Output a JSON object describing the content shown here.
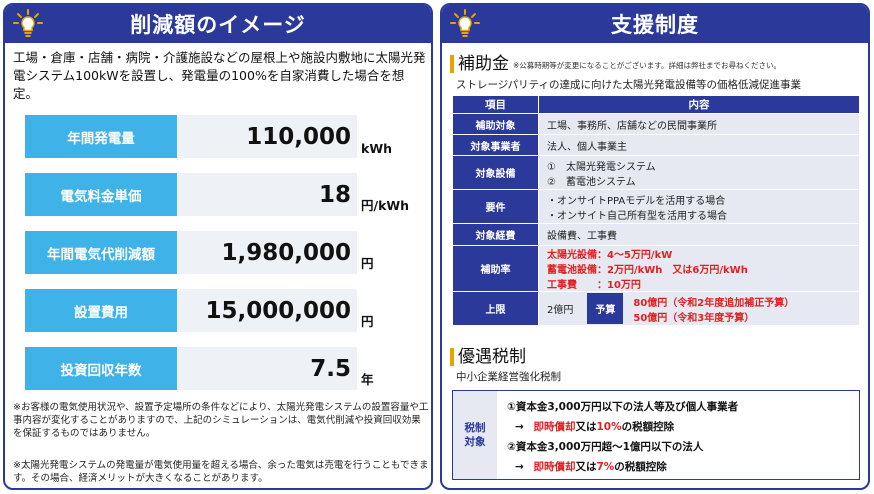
{
  "left": {
    "title": "削減額のイメージ",
    "intro": "工場・倉庫・店舗・病院・介護施設などの屋根上や施設内敷地に太陽光発電システム100kWを設置し、発電量の100%を自家消費した場合を想定。",
    "metrics": [
      {
        "label": "年間発電量",
        "value": "110,000",
        "unit": "kWh"
      },
      {
        "label": "電気料金単価",
        "value": "18",
        "unit": "円/kWh"
      },
      {
        "label": "年間電気代削減額",
        "value": "1,980,000",
        "unit": "円"
      },
      {
        "label": "設置費用",
        "value": "15,000,000",
        "unit": "円"
      },
      {
        "label": "投資回収年数",
        "value": "7.5",
        "unit": "年"
      }
    ],
    "note1": "※お客様の電気使用状況や、設置予定場所の条件などにより、太陽光発電システムの設置容量や工事内容が変化することがありますので、上記のシミュレーションは、電気代削減や投資回収効果を保証するものではありません。",
    "note2": "※太陽光発電システムの発電量が電気使用量を超える場合、余った電気は売電を行うこともできます。その場合、経済メリットが大きくなることがあります。"
  },
  "right": {
    "title": "支援制度",
    "subsidy": {
      "heading": "補助金",
      "note": "※公募時期等が変更になることがございます。詳細は弊社までお尋ねください。",
      "subtitle": "ストレージパリティの達成に向けた太陽光発電設備等の価格低減促進事業",
      "col_item": "項目",
      "col_content": "内容",
      "rows": {
        "target_label": "補助対象",
        "target": "工場、事務所、店舗などの民間事業所",
        "operator_label": "対象事業者",
        "operator": "法人、個人事業主",
        "equipment_label": "対象設備",
        "equipment1": "①　太陽光発電システム",
        "equipment2": "②　蓄電池システム",
        "req_label": "要件",
        "req1": "・オンサイトPPAモデルを活用する場合",
        "req2": "・オンサイト自己所有型を活用する場合",
        "cost_label": "対象経費",
        "cost": "設備費、工事費",
        "rate_label": "補助率",
        "rate1": "太陽光設備：4～5万円/kW",
        "rate2": "蓄電池設備：2万円/kWh　又は6万円/kWh",
        "rate3": "工事費　　：10万円",
        "limit_label": "上限",
        "limit": "2億円",
        "budget_label": "予算",
        "budget1": "80億円（令和2年度追加補正予算）",
        "budget2": "50億円（令和3年度予算）"
      }
    },
    "tax": {
      "heading": "優遇税制",
      "subtitle": "中小企業経営強化税制",
      "label": "税制\n対象",
      "line1": "①資本金3,000万円以下の法人等及び個人事業者",
      "line2_arrow": "→",
      "line2_red": "即時償却",
      "line2_mid": "又は",
      "line2_red2": "10%",
      "line2_end": "の税額控除",
      "line3": "②資本金3,000万円超～1億円以下の法人",
      "line4_arrow": "→",
      "line4_red": "即時償却",
      "line4_mid": "又は",
      "line4_red2": "7%",
      "line4_end": "の税額控除"
    }
  },
  "colors": {
    "navy": "#2b3a9a",
    "sky": "#3fb3e8",
    "accent": "#e8a300",
    "red": "#e02020"
  },
  "icons": [
    "lightbulb-icon"
  ]
}
